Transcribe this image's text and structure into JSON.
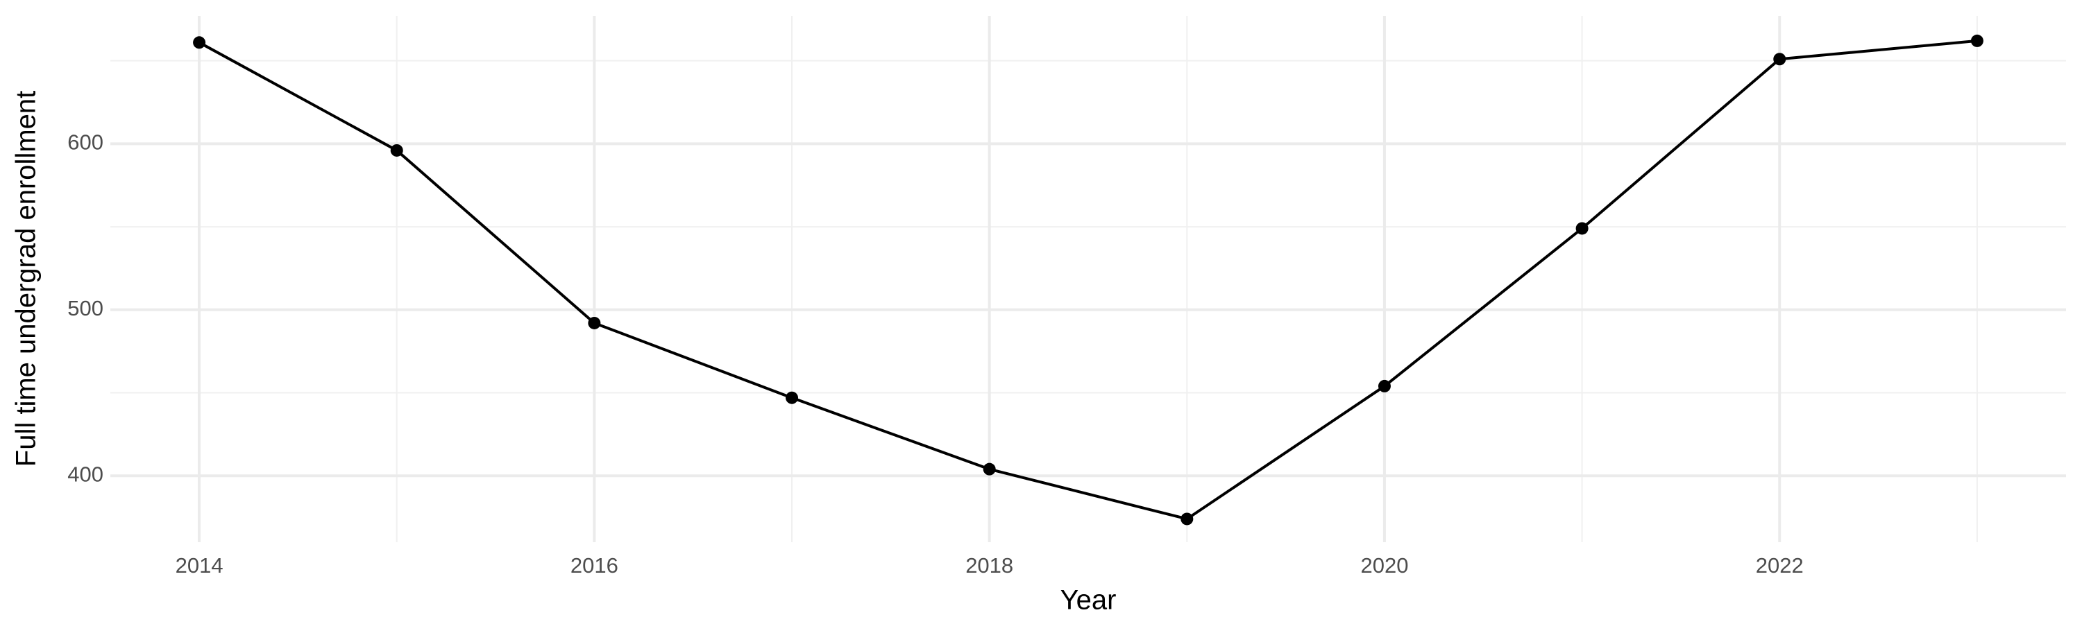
{
  "chart_data": {
    "type": "line",
    "x_label": "Year",
    "y_label": "Full time undergrad enrollment",
    "x": [
      2014,
      2015,
      2016,
      2017,
      2018,
      2019,
      2020,
      2021,
      2022,
      2023
    ],
    "series": [
      {
        "color": "#000000",
        "values": [
          661,
          596,
          492,
          447,
          404,
          374,
          454,
          549,
          651,
          662
        ]
      }
    ],
    "xlim": [
      2013.55,
      2023.45
    ],
    "xticks": [
      2014,
      2016,
      2018,
      2020,
      2022
    ],
    "ylim": [
      360,
      677
    ],
    "yticks": [
      400,
      500,
      600
    ],
    "grid": true
  }
}
